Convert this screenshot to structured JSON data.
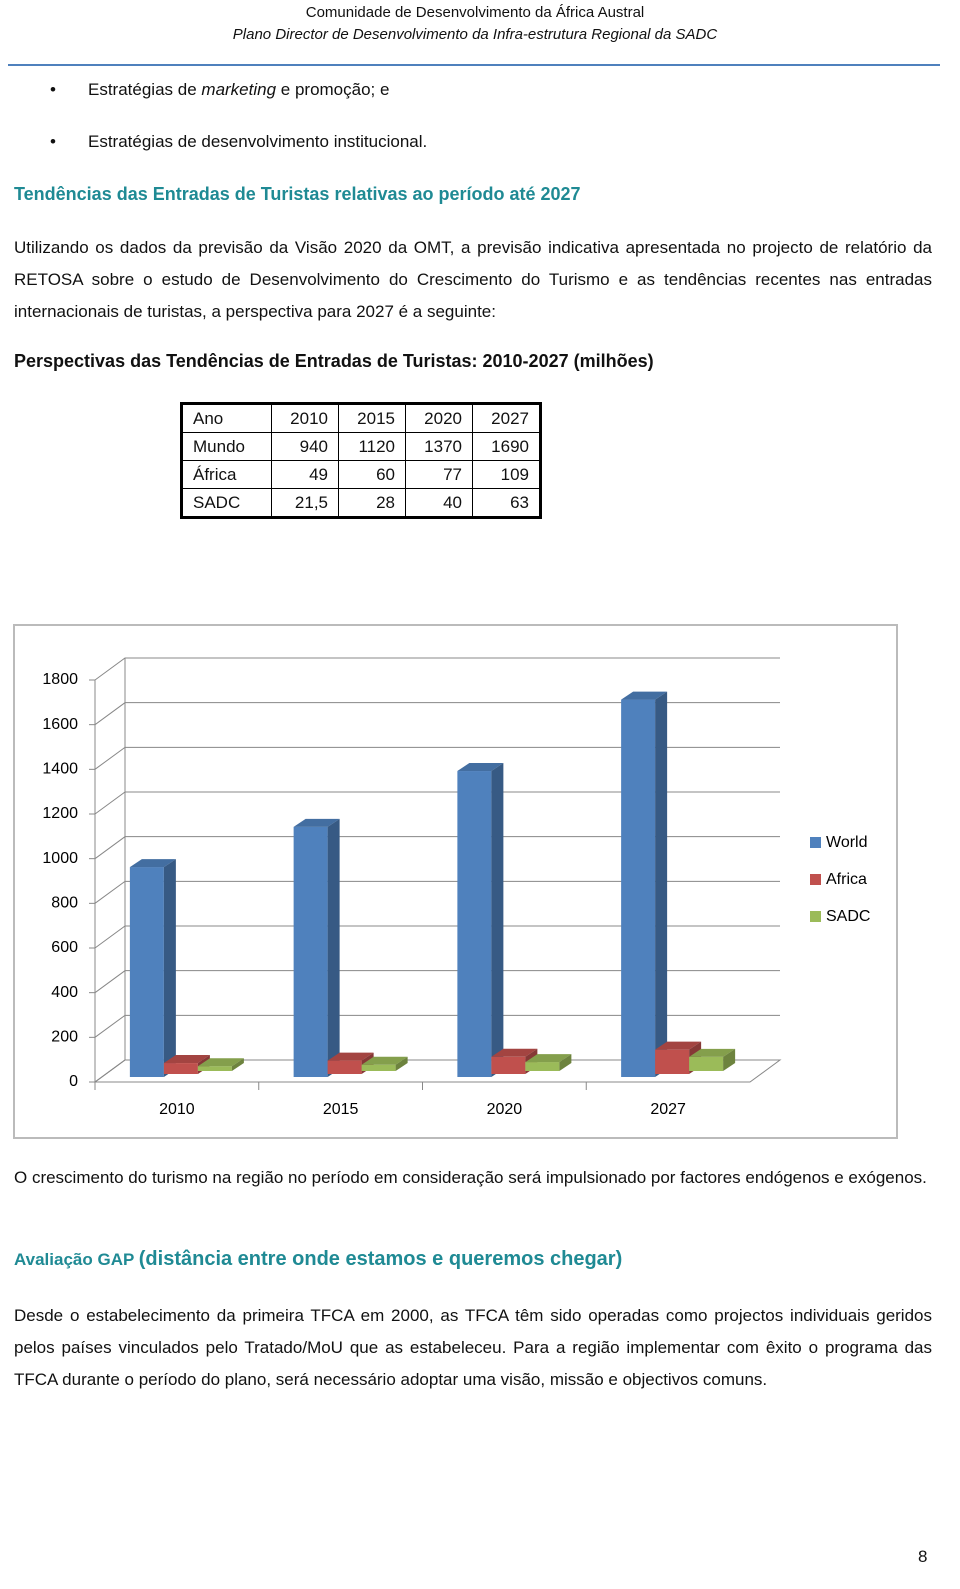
{
  "header": {
    "line1": "Comunidade de Desenvolvimento da África Austral",
    "line2": "Plano Director de Desenvolvimento da Infra-estrutura Regional da SADC"
  },
  "bullets": [
    {
      "before": "Estratégias de ",
      "italic": "marketing",
      "after": " e promoção; e"
    },
    {
      "before": "Estratégias de desenvolvimento institucional."
    }
  ],
  "section1_title": "Tendências das Entradas de Turistas relativas ao período até 2027",
  "paragraph1": "Utilizando os dados da previsão da Visão 2020 da OMT, a previsão indicativa apresentada no projecto de relatório da RETOSA sobre o estudo de Desenvolvimento do Crescimento do Turismo e as tendências recentes nas entradas internacionais de turistas, a perspectiva para 2027 é a seguinte:",
  "table_title": "Perspectivas das Tendências de Entradas de Turistas: 2010-2027 (milhões)",
  "table": {
    "rows": [
      [
        "Ano",
        "2010",
        "2015",
        "2020",
        "2027"
      ],
      [
        "Mundo",
        "940",
        "1120",
        "1370",
        "1690"
      ],
      [
        "África",
        "49",
        "60",
        "77",
        "109"
      ],
      [
        "SADC",
        "21,5",
        "28",
        "40",
        "63"
      ]
    ]
  },
  "chart_data": {
    "type": "bar",
    "categories": [
      "2010",
      "2015",
      "2020",
      "2027"
    ],
    "series": [
      {
        "name": "World",
        "color": "#4f81bd",
        "values": [
          940,
          1120,
          1370,
          1690
        ]
      },
      {
        "name": "Africa",
        "color": "#c0504d",
        "values": [
          49,
          60,
          77,
          109
        ]
      },
      {
        "name": "SADC",
        "color": "#9bbb59",
        "values": [
          21.5,
          28,
          40,
          63
        ]
      }
    ],
    "ylim": [
      0,
      1800
    ],
    "yticks": [
      0,
      200,
      400,
      600,
      800,
      1000,
      1200,
      1400,
      1600,
      1800
    ],
    "grid": true,
    "legend": "right"
  },
  "paragraph2": "O crescimento do turismo na região no período em consideração será impulsionado por factores endógenos e exógenos.",
  "section2_title": {
    "small": "Avaliação GAP",
    "large": "(distância entre onde estamos e queremos chegar)"
  },
  "paragraph3": "Desde o estabelecimento da primeira TFCA em 2000, as TFCA têm sido operadas como projectos individuais geridos pelos países vinculados pelo Tratado/MoU que as estabeleceu. Para a região implementar com êxito o programa das TFCA durante o período do plano, será necessário adoptar uma visão, missão e objectivos comuns.",
  "page_number": "8"
}
